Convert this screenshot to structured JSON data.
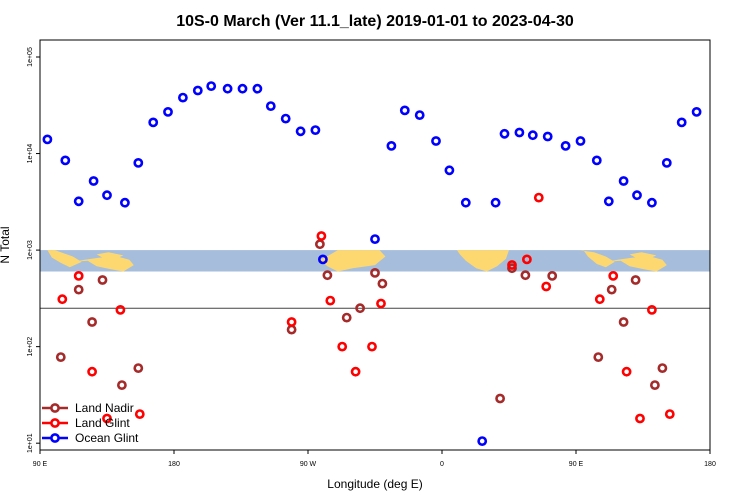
{
  "chart_data": {
    "type": "scatter",
    "title": "10S-0 March (Ver 11.1_late)   2019-01-01 to 2023-04-30",
    "xlabel": "Longitude (deg E)",
    "ylabel": "N Total",
    "x_ticks": [
      {
        "value": 90,
        "label": "90 E"
      },
      {
        "value": 180,
        "label": "180"
      },
      {
        "value": 270,
        "label": "90 W"
      },
      {
        "value": 360,
        "label": "0"
      },
      {
        "value": 450,
        "label": "90 E"
      },
      {
        "value": 540,
        "label": "180"
      }
    ],
    "xlim": [
      90,
      540
    ],
    "y_scale": "log",
    "y_ticks": [
      {
        "value": 10,
        "label": "1e+01"
      },
      {
        "value": 100,
        "label": "1e+02"
      },
      {
        "value": 1000,
        "label": "1e+03"
      },
      {
        "value": 10000,
        "label": "1e+04"
      },
      {
        "value": 100000,
        "label": "1e+05"
      }
    ],
    "ylim": [
      8.5,
      150000
    ],
    "reference_line": 250,
    "map_band": {
      "y_low": 600,
      "y_high": 1000,
      "ocean_color": "#a6bddb",
      "land_color": "#fdd870"
    },
    "series": [
      {
        "name": "Land Nadir",
        "color": "#a52a2a",
        "points": [
          [
            104,
            78
          ],
          [
            116,
            390
          ],
          [
            125,
            180
          ],
          [
            132,
            490
          ],
          [
            145,
            40
          ],
          [
            156,
            60
          ],
          [
            259,
            150
          ],
          [
            278,
            1150
          ],
          [
            283,
            550
          ],
          [
            296,
            200
          ],
          [
            305,
            250
          ],
          [
            315,
            580
          ],
          [
            320,
            450
          ],
          [
            399,
            29
          ],
          [
            407,
            650
          ],
          [
            416,
            550
          ],
          [
            434,
            540
          ],
          [
            465,
            78
          ],
          [
            474,
            390
          ],
          [
            482,
            180
          ],
          [
            490,
            490
          ],
          [
            503,
            40
          ],
          [
            508,
            60
          ]
        ]
      },
      {
        "name": "Land Glint",
        "color": "#ff0000",
        "points": [
          [
            105,
            310
          ],
          [
            116,
            540
          ],
          [
            125,
            55
          ],
          [
            135,
            18
          ],
          [
            144,
            240
          ],
          [
            157,
            20
          ],
          [
            259,
            180
          ],
          [
            279,
            1400
          ],
          [
            285,
            300
          ],
          [
            293,
            100
          ],
          [
            302,
            55
          ],
          [
            313,
            100
          ],
          [
            319,
            280
          ],
          [
            407,
            700
          ],
          [
            417,
            800
          ],
          [
            425,
            3500
          ],
          [
            430,
            420
          ],
          [
            466,
            310
          ],
          [
            475,
            540
          ],
          [
            484,
            55
          ],
          [
            493,
            18
          ],
          [
            501,
            240
          ],
          [
            513,
            20
          ]
        ]
      },
      {
        "name": "Ocean Glint",
        "color": "#0000ff",
        "points": [
          [
            95,
            14000
          ],
          [
            107,
            8500
          ],
          [
            116,
            3200
          ],
          [
            126,
            5200
          ],
          [
            135,
            3700
          ],
          [
            147,
            3100
          ],
          [
            156,
            8000
          ],
          [
            166,
            21000
          ],
          [
            176,
            27000
          ],
          [
            186,
            38000
          ],
          [
            196,
            45000
          ],
          [
            205,
            50000
          ],
          [
            216,
            47000
          ],
          [
            226,
            47000
          ],
          [
            236,
            47000
          ],
          [
            245,
            31000
          ],
          [
            255,
            23000
          ],
          [
            265,
            17000
          ],
          [
            275,
            17500
          ],
          [
            280,
            800
          ],
          [
            315,
            1300
          ],
          [
            326,
            12000
          ],
          [
            335,
            28000
          ],
          [
            345,
            25000
          ],
          [
            356,
            13500
          ],
          [
            365,
            6700
          ],
          [
            376,
            3100
          ],
          [
            387,
            10.5
          ],
          [
            396,
            3100
          ],
          [
            402,
            16000
          ],
          [
            412,
            16500
          ],
          [
            421,
            15500
          ],
          [
            431,
            15000
          ],
          [
            443,
            12000
          ],
          [
            453,
            13500
          ],
          [
            464,
            8500
          ],
          [
            472,
            3200
          ],
          [
            482,
            5200
          ],
          [
            491,
            3700
          ],
          [
            501,
            3100
          ],
          [
            511,
            8000
          ],
          [
            521,
            21000
          ],
          [
            531,
            27000
          ]
        ]
      }
    ],
    "legend_position": "bottom-left"
  }
}
